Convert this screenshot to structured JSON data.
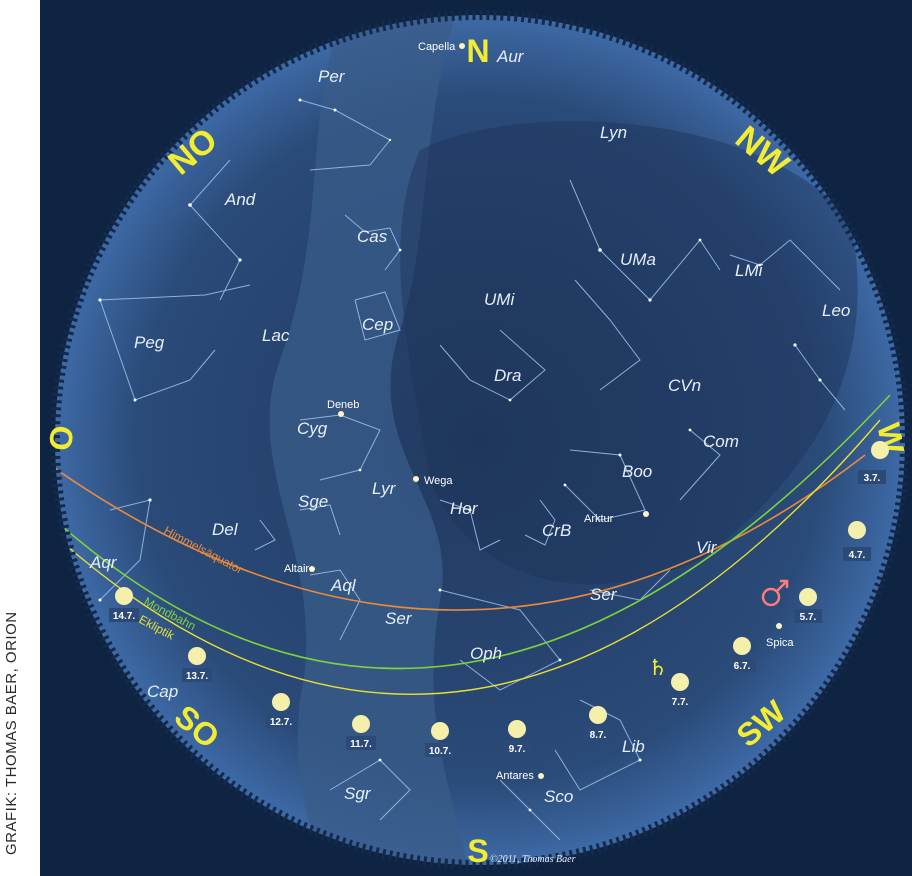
{
  "credit": "GRAFIK: THOMAS BAER, ORION",
  "copyright": "©2011, Thomas Baer",
  "colors": {
    "background_outer": "#0f2342",
    "sky_inner": "#243c63",
    "milky_way": "#3a5c8a",
    "constellation_lines": "#9fc4e8",
    "directions": "#f2ec32",
    "ecliptic": "#e7e033",
    "moon_path": "#7ed23a",
    "equator": "#e98a3c",
    "mars": "#ff7a7a"
  },
  "directions": [
    {
      "id": "n",
      "label": "N"
    },
    {
      "id": "nw",
      "label": "NW"
    },
    {
      "id": "w",
      "label": "W"
    },
    {
      "id": "sw",
      "label": "SW"
    },
    {
      "id": "s",
      "label": "S"
    },
    {
      "id": "so",
      "label": "SO"
    },
    {
      "id": "o",
      "label": "O"
    },
    {
      "id": "no",
      "label": "NO"
    }
  ],
  "constellations": [
    "Aur",
    "Per",
    "Lyn",
    "And",
    "Cas",
    "UMa",
    "LMi",
    "UMi",
    "Leo",
    "Peg",
    "Lac",
    "Cep",
    "Dra",
    "CVn",
    "Cyg",
    "Com",
    "Boo",
    "Lyr",
    "Her",
    "Sge",
    "Del",
    "CrB",
    "Vir",
    "Aqr",
    "Aql",
    "Ser",
    "Ser",
    "Oph",
    "Cap",
    "Lib",
    "Sgr",
    "Sco"
  ],
  "stars": [
    "Capella",
    "Deneb",
    "Wega",
    "Arktur",
    "Altair",
    "Spica",
    "Antares"
  ],
  "lines": {
    "equator": "Himmelsäquator",
    "moon": "Mondbahn",
    "ecliptic": "Ekliptik"
  },
  "moon_dates": [
    "3.7.",
    "4.7.",
    "5.7.",
    "6.7.",
    "7.7.",
    "8.7.",
    "9.7.",
    "10.7.",
    "11.7.",
    "12.7.",
    "13.7.",
    "14.7."
  ],
  "planets": {
    "mars": "mars-symbol",
    "saturn": "saturn-symbol"
  }
}
